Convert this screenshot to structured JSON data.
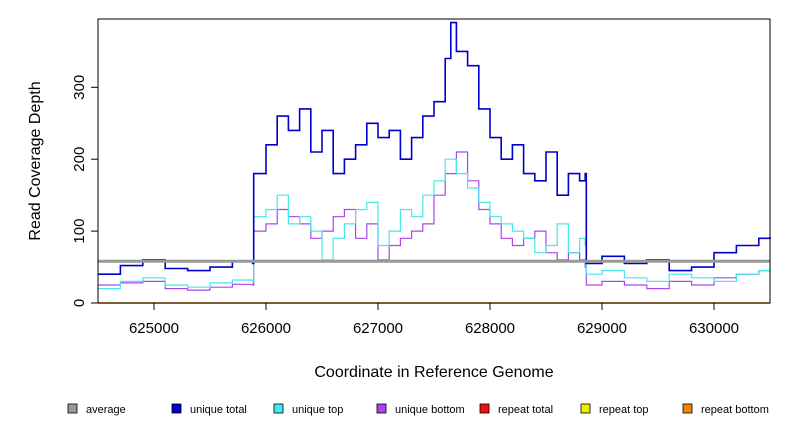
{
  "chart_data": {
    "type": "line",
    "title": "",
    "xlabel": "Coordinate in Reference Genome",
    "ylabel": "Read Coverage Depth",
    "xlim": [
      624500,
      630500
    ],
    "ylim": [
      0,
      395
    ],
    "x_ticks": [
      625000,
      626000,
      627000,
      628000,
      629000,
      630000
    ],
    "x_tick_labels": [
      "625000",
      "626000",
      "627000",
      "628000",
      "629000",
      "630000"
    ],
    "y_ticks": [
      0,
      100,
      200,
      300
    ],
    "y_tick_labels": [
      "0",
      "100",
      "200",
      "300"
    ],
    "grid": false,
    "legend_position": "bottom",
    "series": [
      {
        "name": "average",
        "color": "#999999",
        "x": [
          624500,
          630500
        ],
        "y": [
          58,
          58
        ]
      },
      {
        "name": "unique total",
        "color": "#0000cc",
        "x": [
          624500,
          624700,
          624900,
          625100,
          625300,
          625500,
          625700,
          625880,
          625890,
          626000,
          626100,
          626200,
          626300,
          626400,
          626500,
          626600,
          626700,
          626800,
          626900,
          627000,
          627100,
          627200,
          627300,
          627400,
          627500,
          627600,
          627650,
          627700,
          627800,
          627900,
          628000,
          628100,
          628200,
          628300,
          628400,
          628500,
          628600,
          628700,
          628800,
          628850,
          628860,
          629000,
          629200,
          629400,
          629600,
          629800,
          630000,
          630200,
          630400,
          630500
        ],
        "y": [
          40,
          52,
          60,
          48,
          45,
          50,
          58,
          55,
          180,
          220,
          260,
          240,
          270,
          210,
          240,
          180,
          200,
          220,
          250,
          230,
          240,
          200,
          230,
          260,
          280,
          340,
          390,
          350,
          330,
          270,
          230,
          200,
          220,
          180,
          170,
          210,
          150,
          180,
          170,
          180,
          55,
          65,
          55,
          60,
          45,
          50,
          70,
          80,
          90,
          92
        ]
      },
      {
        "name": "unique top",
        "color": "#44e8e8",
        "x": [
          624500,
          624700,
          624900,
          625100,
          625300,
          625500,
          625700,
          625880,
          625890,
          626000,
          626100,
          626200,
          626300,
          626400,
          626500,
          626600,
          626700,
          626800,
          626900,
          627000,
          627100,
          627200,
          627300,
          627400,
          627500,
          627600,
          627700,
          627800,
          627900,
          628000,
          628100,
          628200,
          628300,
          628400,
          628500,
          628600,
          628700,
          628800,
          628850,
          628860,
          629000,
          629200,
          629400,
          629600,
          629800,
          630000,
          630200,
          630400,
          630500
        ],
        "y": [
          20,
          30,
          35,
          25,
          22,
          28,
          32,
          30,
          120,
          130,
          150,
          110,
          120,
          100,
          60,
          90,
          110,
          130,
          140,
          80,
          100,
          130,
          120,
          150,
          170,
          200,
          180,
          160,
          140,
          120,
          110,
          100,
          90,
          70,
          80,
          110,
          70,
          90,
          80,
          40,
          45,
          35,
          30,
          40,
          35,
          30,
          40,
          45,
          50
        ]
      },
      {
        "name": "unique bottom",
        "color": "#aa44ee",
        "x": [
          624500,
          624700,
          624900,
          625100,
          625300,
          625500,
          625700,
          625880,
          625890,
          626000,
          626100,
          626200,
          626300,
          626400,
          626500,
          626600,
          626700,
          626800,
          626900,
          627000,
          627100,
          627200,
          627300,
          627400,
          627500,
          627600,
          627700,
          627800,
          627900,
          628000,
          628100,
          628200,
          628300,
          628400,
          628500,
          628600,
          628700,
          628800,
          628850,
          628860,
          629000,
          629200,
          629400,
          629600,
          629800,
          630000,
          630200,
          630400,
          630500
        ],
        "y": [
          25,
          28,
          30,
          20,
          18,
          22,
          26,
          25,
          100,
          110,
          130,
          120,
          110,
          90,
          100,
          120,
          130,
          90,
          110,
          60,
          80,
          90,
          100,
          110,
          150,
          180,
          210,
          170,
          130,
          110,
          90,
          80,
          90,
          100,
          70,
          60,
          70,
          60,
          50,
          25,
          30,
          25,
          20,
          30,
          25,
          35,
          40,
          45,
          45
        ]
      },
      {
        "name": "repeat total",
        "color": "#ee1111",
        "x": [
          624500,
          630500
        ],
        "y": [
          0,
          0
        ]
      },
      {
        "name": "repeat top",
        "color": "#eeee00",
        "x": [
          624500,
          630500
        ],
        "y": [
          0,
          0
        ]
      },
      {
        "name": "repeat bottom",
        "color": "#ee8800",
        "x": [
          624500,
          630500
        ],
        "y": [
          0,
          0
        ]
      }
    ]
  }
}
